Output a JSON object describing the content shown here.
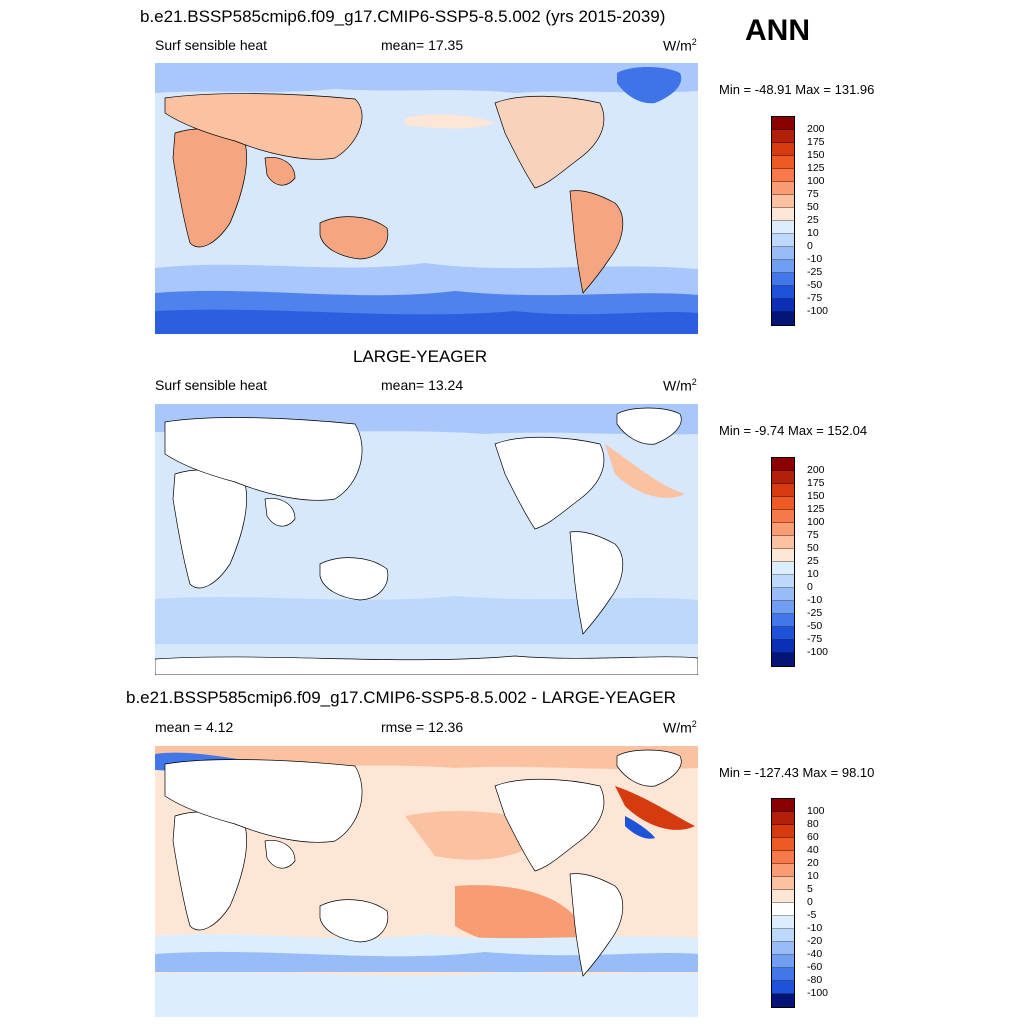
{
  "season": "ANN",
  "panels": [
    {
      "title": "b.e21.BSSP585cmip6.f09_g17.CMIP6-SSP5-8.5.002 (yrs 2015-2039)",
      "left": "Surf sensible heat",
      "center": "mean=  17.35",
      "units_base": "W/m",
      "units_sup": "2",
      "minmax": "Min = -48.91 Max = 131.96",
      "map_type": "abs_model"
    },
    {
      "title": "LARGE-YEAGER",
      "left": "Surf sensible heat",
      "center": "mean=  13.24",
      "units_base": "W/m",
      "units_sup": "2",
      "minmax": "Min =  -9.74 Max = 152.04",
      "map_type": "abs_obs"
    },
    {
      "title": "b.e21.BSSP585cmip6.f09_g17.CMIP6-SSP5-8.5.002 - LARGE-YEAGER",
      "left": "mean =   4.12",
      "center": "rmse =  12.36",
      "units_base": "W/m",
      "units_sup": "2",
      "minmax": "Min = -127.43 Max =  98.10",
      "map_type": "diff"
    }
  ],
  "colorbars": {
    "abs": {
      "labels": [
        "200",
        "175",
        "150",
        "125",
        "100",
        "75",
        "50",
        "25",
        "10",
        "0",
        "-10",
        "-25",
        "-50",
        "-75",
        "-100"
      ],
      "colors": [
        "#8b0000",
        "#b3200a",
        "#d63b10",
        "#ee5a24",
        "#f5794a",
        "#f89c74",
        "#fbc2a2",
        "#fde6d6",
        "#dceefd",
        "#bcd8fb",
        "#97bcf7",
        "#6f9ef2",
        "#4277ea",
        "#1e52d8",
        "#0b2fb6",
        "#041477"
      ]
    },
    "diff": {
      "labels": [
        "100",
        "80",
        "60",
        "40",
        "20",
        "10",
        "5",
        "0",
        "-5",
        "-10",
        "-20",
        "-40",
        "-60",
        "-80",
        "-100"
      ],
      "colors": [
        "#8b0000",
        "#b3200a",
        "#d63b10",
        "#ee5a24",
        "#f5794a",
        "#f89c74",
        "#fbc2a2",
        "#fde6d6",
        "#ffffff",
        "#dceefd",
        "#bcd8fb",
        "#97bcf7",
        "#6f9ef2",
        "#4277ea",
        "#1e52d8",
        "#041477"
      ]
    }
  }
}
